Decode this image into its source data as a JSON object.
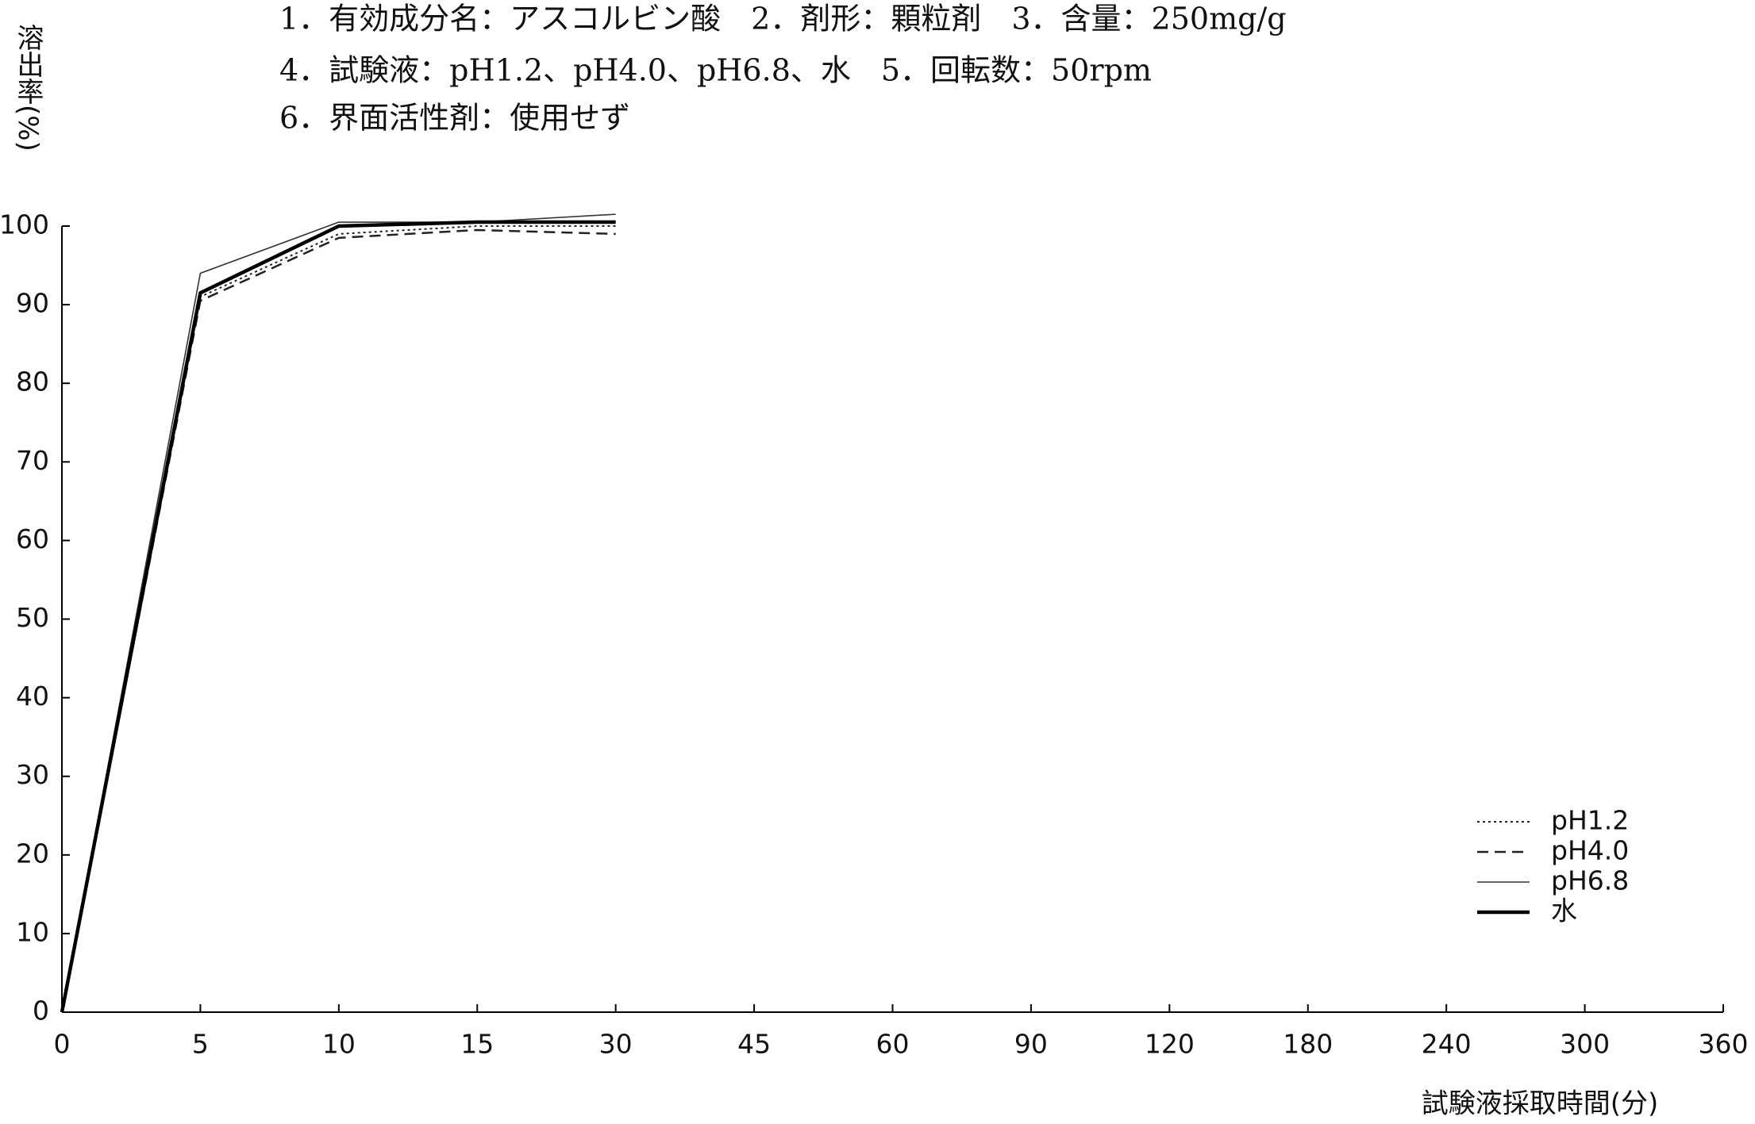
{
  "chart_data": {
    "type": "line",
    "annotations": [
      "1．有効成分名：アスコルビン酸　2．剤形：顆粒剤　3．含量：250mg/g",
      "4．試験液：pH1.2、pH4.0、pH6.8、水　5．回転数：50rpm",
      "6．界面活性剤：使用せず"
    ],
    "y_label": "溶出率(%)",
    "x_label": "試験液採取時間(分)",
    "categories": [
      "0",
      "5",
      "10",
      "15",
      "30",
      "45",
      "60",
      "90",
      "120",
      "180",
      "240",
      "300",
      "360"
    ],
    "series": [
      {
        "name": "pH1.2",
        "color": "#222222",
        "line_style": "dotted",
        "values": [
          0,
          91,
          99,
          100,
          100,
          null,
          null,
          null,
          null,
          null,
          null,
          null,
          null
        ]
      },
      {
        "name": "pH4.0",
        "color": "#222222",
        "line_style": "dashed",
        "values": [
          0,
          90.5,
          98.5,
          99.5,
          99,
          null,
          null,
          null,
          null,
          null,
          null,
          null,
          null
        ]
      },
      {
        "name": "pH6.8",
        "color": "#333333",
        "line_style": "solid",
        "values": [
          0,
          94,
          100.5,
          100.5,
          101.5,
          null,
          null,
          null,
          null,
          null,
          null,
          null,
          null
        ]
      },
      {
        "name": "水",
        "color": "#000000",
        "line_style": "thick",
        "values": [
          0,
          91.5,
          100,
          100.5,
          100.5,
          null,
          null,
          null,
          null,
          null,
          null,
          null,
          null
        ]
      }
    ],
    "ylim": [
      0,
      100
    ],
    "yticks": [
      0,
      10,
      20,
      30,
      40,
      50,
      60,
      70,
      80,
      90,
      100
    ],
    "grid": false,
    "legend": "lower right"
  }
}
